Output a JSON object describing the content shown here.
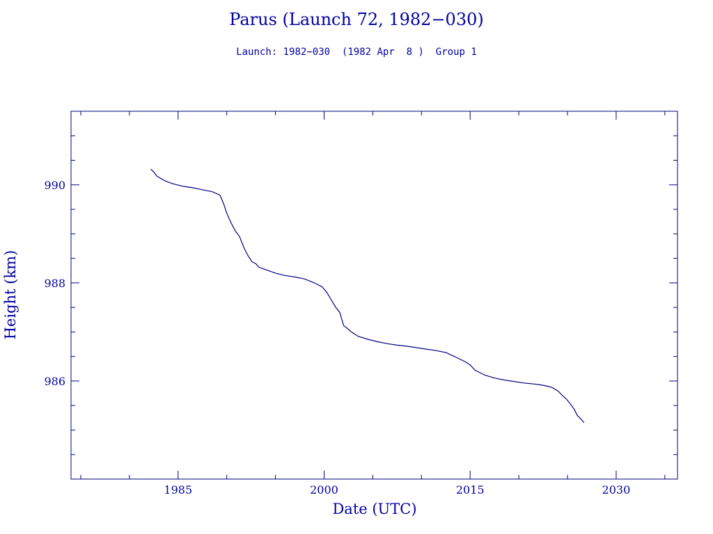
{
  "title": "Parus (Launch 72, 1982−030)",
  "subtitle": "Launch: 1982−030  (1982 Apr  8 )  Group 1",
  "chart_data": {
    "type": "line",
    "title": "Parus (Launch 72, 1982−030)",
    "subtitle": "Launch: 1982−030  (1982 Apr  8 )  Group 1",
    "xlabel": "Date (UTC)",
    "ylabel": "Height (km)",
    "xlim": [
      1974.0,
      2036.3
    ],
    "ylim": [
      984.0,
      991.5
    ],
    "xticks": [
      1985,
      2000,
      2015,
      2030
    ],
    "yticks": [
      986,
      988,
      990
    ],
    "grid": false,
    "color": "#00007f",
    "x": [
      1982.2,
      1982.4,
      1982.6,
      1982.8,
      1983.3,
      1983.8,
      1984.5,
      1985.5,
      1986.5,
      1987.5,
      1988.5,
      1989.3,
      1989.7,
      1990.0,
      1990.5,
      1990.9,
      1991.3,
      1991.8,
      1992.2,
      1992.6,
      1993.0,
      1993.3,
      1994.0,
      1995.0,
      1996.0,
      1997.0,
      1998.0,
      1999.0,
      1999.8,
      2000.3,
      2000.8,
      2001.2,
      2001.6,
      2002.0,
      2002.4,
      2002.8,
      2003.5,
      2004.5,
      2005.5,
      2006.5,
      2007.5,
      2008.5,
      2009.5,
      2010.5,
      2011.5,
      2012.5,
      2013.5,
      2014.0,
      2014.5,
      2015.0,
      2015.5,
      2016.5,
      2017.5,
      2018.5,
      2019.5,
      2020.5,
      2021.5,
      2022.3,
      2022.8,
      2023.4,
      2024.0,
      2024.5,
      2024.9,
      2025.3,
      2025.7,
      2026.0,
      2026.5,
      2026.7
    ],
    "y": [
      990.32,
      990.28,
      990.24,
      990.18,
      990.12,
      990.07,
      990.02,
      989.97,
      989.94,
      989.9,
      989.86,
      989.79,
      989.6,
      989.42,
      989.2,
      989.05,
      988.95,
      988.7,
      988.55,
      988.43,
      988.39,
      988.32,
      988.27,
      988.2,
      988.15,
      988.12,
      988.08,
      988.0,
      987.92,
      987.8,
      987.63,
      987.5,
      987.4,
      987.13,
      987.07,
      987.0,
      986.91,
      986.85,
      986.8,
      986.76,
      986.73,
      986.71,
      986.68,
      986.65,
      986.62,
      986.58,
      986.49,
      986.44,
      986.39,
      986.33,
      986.22,
      986.12,
      986.06,
      986.02,
      985.99,
      985.96,
      985.94,
      985.92,
      985.9,
      985.87,
      985.8,
      985.7,
      985.63,
      985.53,
      985.42,
      985.3,
      985.2,
      985.15
    ]
  }
}
